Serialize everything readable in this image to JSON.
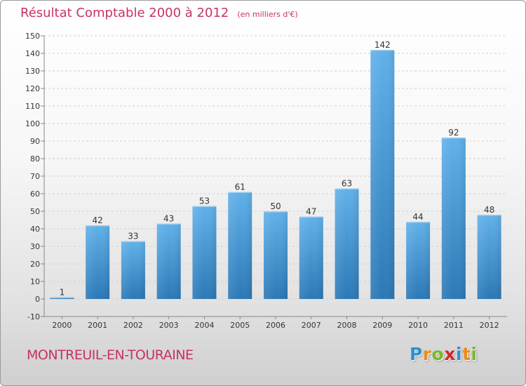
{
  "header": {
    "title": "Résultat Comptable 2000 à 2012",
    "subtitle": "(en milliers d'€)"
  },
  "footer": {
    "place_name": "MONTREUIL-EN-TOURAINE",
    "logo": {
      "letters": [
        {
          "char": "P",
          "color": "#2f8fce"
        },
        {
          "char": "r",
          "color": "#f08a1c"
        },
        {
          "char": "o",
          "color": "#7bb82a"
        },
        {
          "char": "x",
          "color": "#d4262e"
        },
        {
          "char": "i",
          "color": "#2f8fce"
        },
        {
          "char": "t",
          "color": "#f08a1c"
        },
        {
          "char": "i",
          "color": "#7bb82a"
        }
      ]
    }
  },
  "colors": {
    "title": "#c8335e",
    "bar_top": "#61b1ea",
    "bar_bottom": "#2b78b6",
    "grid": "#d0d0d0",
    "axis_text": "#333333"
  },
  "chart_data": {
    "type": "bar",
    "categories": [
      "2000",
      "2001",
      "2002",
      "2003",
      "2004",
      "2005",
      "2006",
      "2007",
      "2008",
      "2009",
      "2010",
      "2011",
      "2012"
    ],
    "values": [
      1,
      42,
      33,
      43,
      53,
      61,
      50,
      47,
      63,
      142,
      44,
      92,
      48
    ],
    "data_labels": [
      "1",
      "42",
      "33",
      "43",
      "53",
      "61",
      "50",
      "47",
      "63",
      "142",
      "44",
      "92",
      "48"
    ],
    "ylim": [
      -10,
      150
    ],
    "yticks": [
      -10,
      0,
      10,
      20,
      30,
      40,
      50,
      60,
      70,
      80,
      90,
      100,
      110,
      120,
      130,
      140,
      150
    ],
    "ytick_labels": [
      "-10",
      "0",
      "10",
      "20",
      "30",
      "40",
      "50",
      "60",
      "70",
      "80",
      "90",
      "100",
      "110",
      "120",
      "130",
      "140",
      "150"
    ],
    "grid": true,
    "legend": "none"
  }
}
